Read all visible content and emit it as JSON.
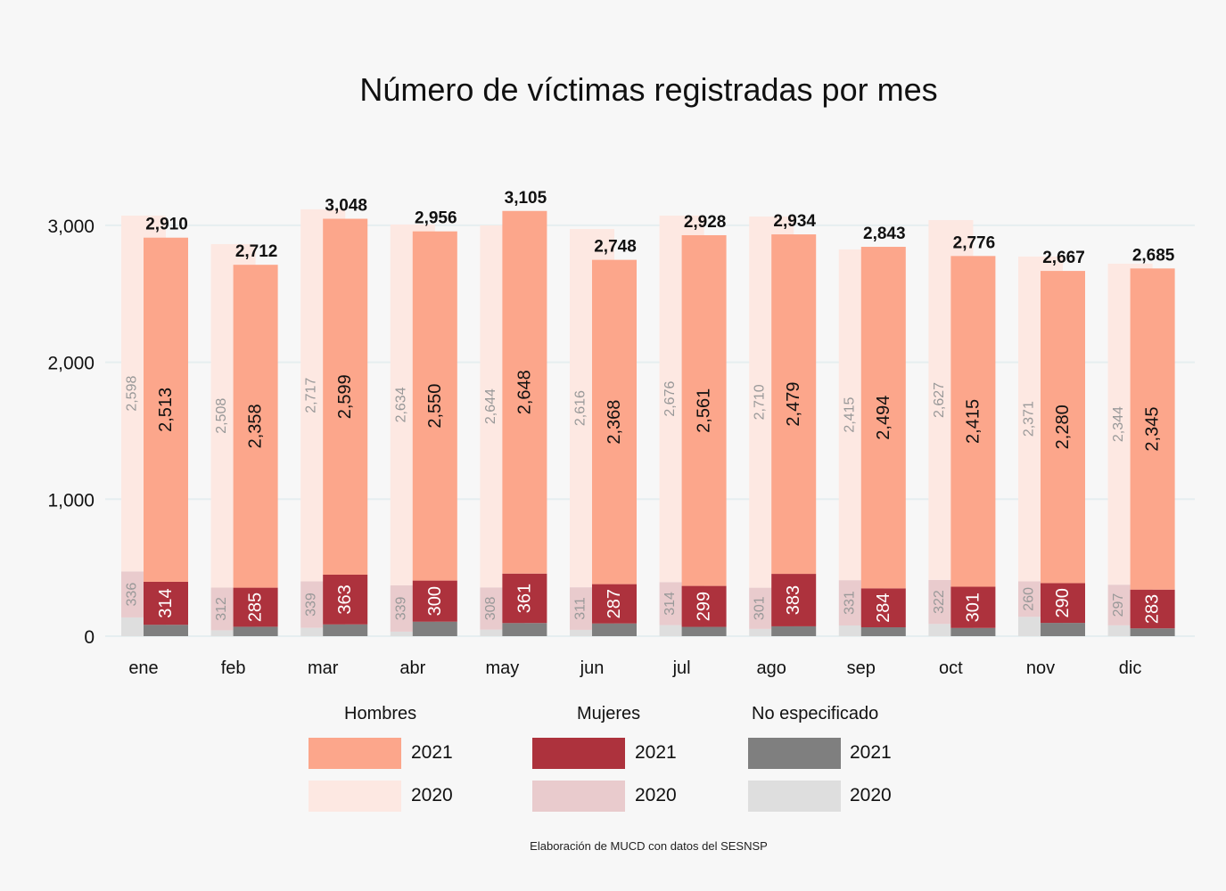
{
  "chart_data": {
    "type": "bar",
    "title": "Número de víctimas registradas por mes",
    "xlabel": "",
    "ylabel": "",
    "ylim": [
      0,
      3200
    ],
    "yticks": [
      0,
      1000,
      2000,
      3000
    ],
    "ytick_labels": [
      "0",
      "1,000",
      "2,000",
      "3,000"
    ],
    "grid": true,
    "categories": [
      "ene",
      "feb",
      "mar",
      "abr",
      "may",
      "jun",
      "jul",
      "ago",
      "sep",
      "oct",
      "nov",
      "dic"
    ],
    "stacking": "stacked by sex, grouped (overlapping) by year",
    "series": [
      {
        "name": "No especificado 2020",
        "group": "No especificado",
        "year": "2020",
        "color": "#dedede",
        "values": [
          137,
          43,
          61,
          33,
          48,
          46,
          81,
          53,
          78,
          89,
          141,
          79
        ],
        "labeled": false
      },
      {
        "name": "Mujeres 2020",
        "group": "Mujeres",
        "year": "2020",
        "color": "#e9cbcd",
        "values": [
          336,
          312,
          339,
          339,
          308,
          311,
          314,
          301,
          331,
          322,
          260,
          297
        ],
        "labeled": true
      },
      {
        "name": "Hombres 2020",
        "group": "Hombres",
        "year": "2020",
        "color": "#fde8e2",
        "values": [
          2598,
          2508,
          2717,
          2634,
          2644,
          2616,
          2676,
          2710,
          2415,
          2627,
          2371,
          2344
        ],
        "labeled": true
      },
      {
        "name": "No especificado 2021",
        "group": "No especificado",
        "year": "2021",
        "color": "#7f7f7f",
        "values": [
          83,
          69,
          86,
          106,
          96,
          93,
          68,
          72,
          65,
          60,
          97,
          57
        ],
        "labeled": false
      },
      {
        "name": "Mujeres 2021",
        "group": "Mujeres",
        "year": "2021",
        "color": "#ad323d",
        "values": [
          314,
          285,
          363,
          300,
          361,
          287,
          299,
          383,
          284,
          301,
          290,
          283
        ],
        "labeled": true
      },
      {
        "name": "Hombres 2021",
        "group": "Hombres",
        "year": "2021",
        "color": "#fca68b",
        "values": [
          2513,
          2358,
          2599,
          2550,
          2648,
          2368,
          2561,
          2479,
          2494,
          2415,
          2280,
          2345
        ],
        "labeled": true
      }
    ],
    "totals_2021": [
      2910,
      2712,
      3048,
      2956,
      3105,
      2748,
      2928,
      2934,
      2843,
      2776,
      2667,
      2685
    ],
    "total_labels_2021": [
      "2,910",
      "2,712",
      "3,048",
      "2,956",
      "3,105",
      "2,748",
      "2,928",
      "2,934",
      "2,843",
      "2,776",
      "2,667",
      "2,685"
    ],
    "legend": {
      "placement": "bottom",
      "groups": [
        {
          "title": "Hombres",
          "entries": [
            {
              "label": "2021",
              "color": "#fca68b"
            },
            {
              "label": "2020",
              "color": "#fde8e2"
            }
          ]
        },
        {
          "title": "Mujeres",
          "entries": [
            {
              "label": "2021",
              "color": "#ad323d"
            },
            {
              "label": "2020",
              "color": "#e9cbcd"
            }
          ]
        },
        {
          "title": "No especificado",
          "entries": [
            {
              "label": "2021",
              "color": "#7f7f7f"
            },
            {
              "label": "2020",
              "color": "#dedede"
            }
          ]
        }
      ]
    },
    "caption": "Elaboración de MUCD con datos del SESNSP"
  }
}
